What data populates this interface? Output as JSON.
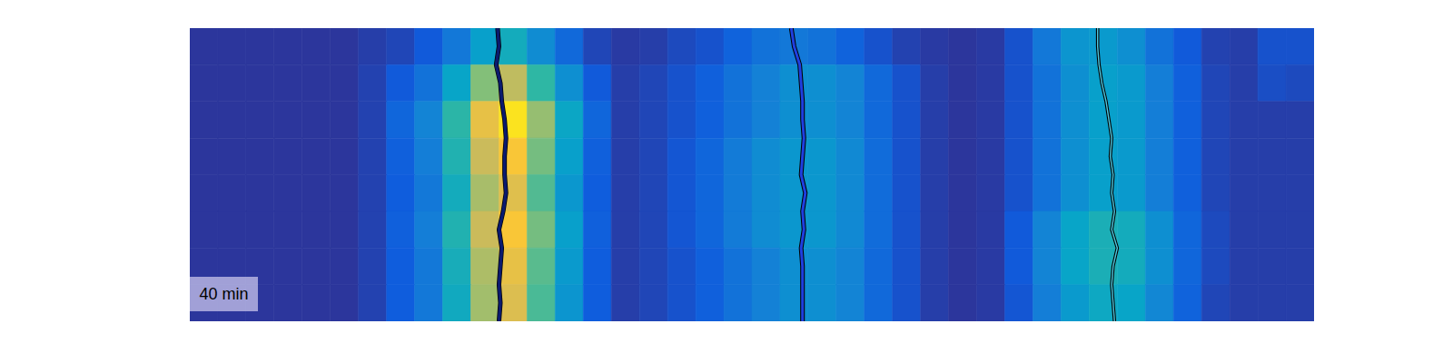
{
  "chart_data": {
    "type": "heatmap",
    "xlim": [
      0,
      40
    ],
    "ylim": [
      0,
      8
    ],
    "zlim": [
      0,
      1
    ],
    "tick_labels": false,
    "annotation": "40 min",
    "cells": [
      [
        0.03,
        0.03,
        0.03,
        0.03,
        0.03,
        0.03,
        0.05,
        0.07,
        0.12,
        0.22,
        0.36,
        0.42,
        0.29,
        0.17,
        0.07,
        0.04,
        0.05,
        0.08,
        0.1,
        0.15,
        0.2,
        0.22,
        0.2,
        0.15,
        0.1,
        0.06,
        0.04,
        0.03,
        0.04,
        0.1,
        0.22,
        0.32,
        0.34,
        0.3,
        0.2,
        0.12,
        0.06,
        0.05,
        0.1,
        0.1
      ],
      [
        0.03,
        0.03,
        0.03,
        0.03,
        0.03,
        0.03,
        0.06,
        0.12,
        0.2,
        0.38,
        0.62,
        0.72,
        0.5,
        0.3,
        0.12,
        0.05,
        0.07,
        0.1,
        0.14,
        0.2,
        0.25,
        0.3,
        0.3,
        0.26,
        0.17,
        0.1,
        0.05,
        0.03,
        0.04,
        0.1,
        0.2,
        0.3,
        0.36,
        0.34,
        0.24,
        0.14,
        0.07,
        0.05,
        0.09,
        0.08
      ],
      [
        0.03,
        0.03,
        0.03,
        0.03,
        0.03,
        0.03,
        0.06,
        0.16,
        0.26,
        0.49,
        0.81,
        0.94,
        0.65,
        0.39,
        0.16,
        0.05,
        0.07,
        0.1,
        0.14,
        0.2,
        0.25,
        0.3,
        0.3,
        0.26,
        0.17,
        0.1,
        0.05,
        0.03,
        0.04,
        0.1,
        0.2,
        0.3,
        0.36,
        0.34,
        0.24,
        0.14,
        0.07,
        0.05,
        0.05,
        0.05
      ],
      [
        0.03,
        0.03,
        0.03,
        0.03,
        0.03,
        0.03,
        0.06,
        0.14,
        0.24,
        0.46,
        0.74,
        0.86,
        0.6,
        0.36,
        0.14,
        0.05,
        0.07,
        0.11,
        0.16,
        0.23,
        0.29,
        0.33,
        0.33,
        0.28,
        0.18,
        0.1,
        0.05,
        0.03,
        0.04,
        0.1,
        0.2,
        0.3,
        0.36,
        0.34,
        0.24,
        0.14,
        0.07,
        0.05,
        0.05,
        0.05
      ],
      [
        0.03,
        0.03,
        0.03,
        0.03,
        0.03,
        0.03,
        0.06,
        0.13,
        0.22,
        0.42,
        0.68,
        0.79,
        0.55,
        0.33,
        0.13,
        0.05,
        0.07,
        0.11,
        0.16,
        0.23,
        0.29,
        0.33,
        0.33,
        0.28,
        0.18,
        0.1,
        0.05,
        0.03,
        0.04,
        0.1,
        0.2,
        0.3,
        0.36,
        0.34,
        0.24,
        0.14,
        0.07,
        0.05,
        0.05,
        0.05
      ],
      [
        0.03,
        0.03,
        0.03,
        0.03,
        0.03,
        0.03,
        0.06,
        0.14,
        0.24,
        0.46,
        0.74,
        0.86,
        0.6,
        0.36,
        0.14,
        0.05,
        0.07,
        0.11,
        0.16,
        0.23,
        0.29,
        0.33,
        0.33,
        0.28,
        0.18,
        0.1,
        0.05,
        0.03,
        0.04,
        0.12,
        0.26,
        0.38,
        0.44,
        0.42,
        0.3,
        0.16,
        0.08,
        0.05,
        0.05,
        0.05
      ],
      [
        0.03,
        0.03,
        0.03,
        0.03,
        0.03,
        0.03,
        0.06,
        0.13,
        0.22,
        0.43,
        0.69,
        0.81,
        0.56,
        0.34,
        0.13,
        0.05,
        0.07,
        0.1,
        0.14,
        0.2,
        0.25,
        0.3,
        0.3,
        0.26,
        0.17,
        0.1,
        0.05,
        0.03,
        0.04,
        0.12,
        0.26,
        0.38,
        0.44,
        0.42,
        0.3,
        0.16,
        0.08,
        0.05,
        0.05,
        0.05
      ],
      [
        0.03,
        0.03,
        0.03,
        0.03,
        0.03,
        0.03,
        0.06,
        0.13,
        0.22,
        0.41,
        0.67,
        0.78,
        0.54,
        0.32,
        0.13,
        0.05,
        0.07,
        0.1,
        0.14,
        0.2,
        0.25,
        0.3,
        0.3,
        0.26,
        0.17,
        0.1,
        0.05,
        0.03,
        0.04,
        0.11,
        0.24,
        0.34,
        0.4,
        0.38,
        0.27,
        0.15,
        0.07,
        0.05,
        0.05,
        0.05
      ]
    ],
    "tracks": [
      {
        "color": "#0b1a6e",
        "x": [
          10.95,
          11.0,
          10.9,
          11.05,
          11.1,
          11.2,
          11.25,
          11.2,
          11.2,
          11.25,
          11.15,
          11.0,
          11.1,
          11.05,
          11.0,
          11.05,
          11.0
        ],
        "y": [
          0,
          0.5,
          1,
          1.5,
          2,
          2.5,
          3,
          3.5,
          4,
          4.5,
          5,
          5.5,
          6,
          6.5,
          7,
          7.5,
          8
        ]
      },
      {
        "color": "#1f3fe0",
        "x": [
          21.4,
          21.5,
          21.7,
          21.75,
          21.8,
          21.8,
          21.85,
          21.8,
          21.75,
          21.9,
          21.8,
          21.85,
          21.75,
          21.8,
          21.8,
          21.8,
          21.8
        ],
        "y": [
          0,
          0.5,
          1,
          1.5,
          2,
          2.5,
          3,
          3.5,
          4,
          4.5,
          5,
          5.5,
          6,
          6.5,
          7,
          7.5,
          8
        ]
      },
      {
        "color": "#4fc8e0",
        "x": [
          32.3,
          32.3,
          32.35,
          32.45,
          32.6,
          32.7,
          32.8,
          32.75,
          32.85,
          32.8,
          32.9,
          32.8,
          33.0,
          32.85,
          32.8,
          32.85,
          32.9
        ],
        "y": [
          0,
          0.5,
          1,
          1.5,
          2,
          2.5,
          3,
          3.5,
          4,
          4.5,
          5,
          5.5,
          6,
          6.5,
          7,
          7.5,
          8
        ]
      }
    ]
  }
}
